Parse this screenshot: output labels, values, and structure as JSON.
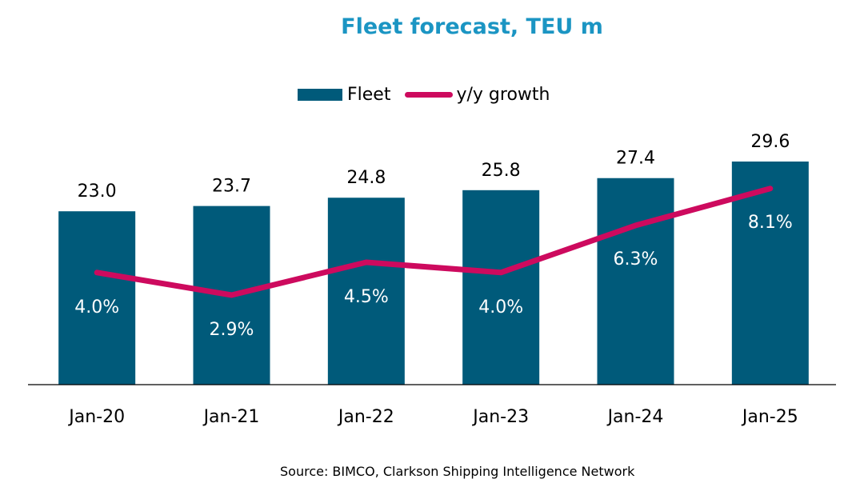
{
  "chart_data": {
    "type": "bar",
    "title": "Fleet forecast, TEU m",
    "categories": [
      "Jan-20",
      "Jan-21",
      "Jan-22",
      "Jan-23",
      "Jan-24",
      "Jan-25"
    ],
    "series": [
      {
        "name": "Fleet",
        "type": "bar",
        "values": [
          23.0,
          23.7,
          24.8,
          25.8,
          27.4,
          29.6
        ],
        "labels": [
          "23.0",
          "23.7",
          "24.8",
          "25.8",
          "27.4",
          "29.6"
        ],
        "color": "#005a7a"
      },
      {
        "name": "y/y growth",
        "type": "line",
        "values": [
          4.0,
          2.9,
          4.5,
          4.0,
          6.3,
          8.1
        ],
        "labels": [
          "4.0%",
          "2.9%",
          "4.5%",
          "4.0%",
          "6.3%",
          "8.1%"
        ],
        "color": "#cd0a5e"
      }
    ],
    "legend_position": "top",
    "grid": false
  },
  "source": "Source: BIMCO, Clarkson Shipping Intelligence Network"
}
